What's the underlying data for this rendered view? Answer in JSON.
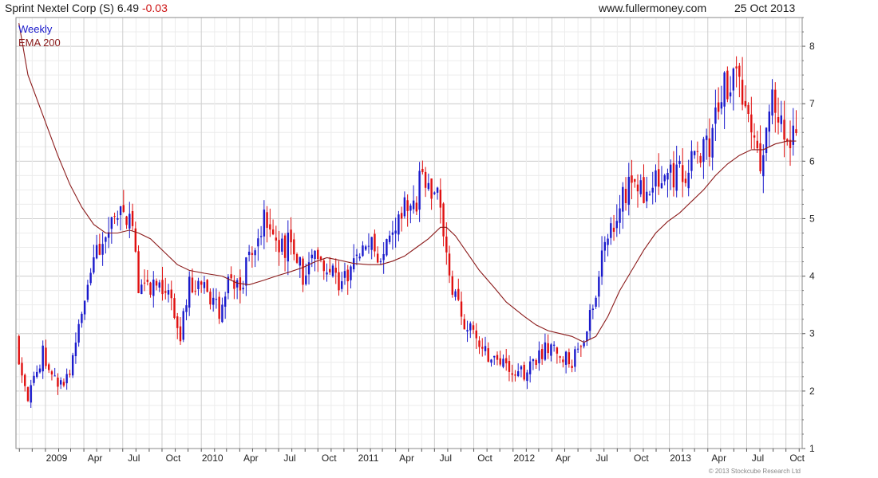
{
  "header": {
    "security": "Sprint Nextel Corp (S)",
    "last_price": "6.49",
    "change": "-0.03",
    "website": "www.fullermoney.com",
    "date": "25 Oct 2013"
  },
  "colors": {
    "up": "#1a1acc",
    "down": "#e01010",
    "ema": "#8b1a1a",
    "grid": "#d8d8d8",
    "legend_weekly": "#1a1acc",
    "legend_ema": "#8b1a1a",
    "change": "#cc1111"
  },
  "chart_data": {
    "type": "candlestick",
    "interval": "Weekly",
    "legend": [
      "Weekly",
      "EMA 200"
    ],
    "legend_position": "top-left",
    "y_axis_position": "right",
    "grid": true,
    "ylim": [
      1,
      8.5
    ],
    "y_ticks": [
      1,
      2,
      3,
      4,
      5,
      6,
      7,
      8
    ],
    "x_ticks": [
      "2009",
      "Apr",
      "Jul",
      "Oct",
      "2010",
      "Apr",
      "Jul",
      "Oct",
      "2011",
      "Apr",
      "Jul",
      "Oct",
      "2012",
      "Apr",
      "Jul",
      "Oct",
      "2013",
      "Apr",
      "Jul",
      "Oct"
    ],
    "price_anchors": [
      [
        "2008-10-31",
        2.6
      ],
      [
        "2008-11-21",
        1.8
      ],
      [
        "2008-12-26",
        2.7
      ],
      [
        "2009-01-30",
        2.1
      ],
      [
        "2009-02-27",
        2.3
      ],
      [
        "2009-03-27",
        3.3
      ],
      [
        "2009-04-24",
        4.2
      ],
      [
        "2009-05-22",
        4.7
      ],
      [
        "2009-06-19",
        5.2
      ],
      [
        "2009-07-17",
        5.0
      ],
      [
        "2009-08-07",
        3.9
      ],
      [
        "2009-09-04",
        3.8
      ],
      [
        "2009-10-02",
        3.8
      ],
      [
        "2009-10-23",
        3.6
      ],
      [
        "2009-11-13",
        2.9
      ],
      [
        "2009-12-04",
        3.9
      ],
      [
        "2010-01-08",
        3.8
      ],
      [
        "2010-02-12",
        3.4
      ],
      [
        "2010-03-05",
        3.8
      ],
      [
        "2010-04-09",
        4.0
      ],
      [
        "2010-05-14",
        4.6
      ],
      [
        "2010-06-04",
        5.1
      ],
      [
        "2010-06-25",
        4.4
      ],
      [
        "2010-07-30",
        4.6
      ],
      [
        "2010-08-27",
        4.0
      ],
      [
        "2010-09-24",
        4.6
      ],
      [
        "2010-10-22",
        4.2
      ],
      [
        "2010-11-19",
        3.9
      ],
      [
        "2010-12-24",
        4.2
      ],
      [
        "2011-01-28",
        4.5
      ],
      [
        "2011-02-25",
        4.3
      ],
      [
        "2011-03-25",
        4.6
      ],
      [
        "2011-04-22",
        5.2
      ],
      [
        "2011-05-20",
        5.3
      ],
      [
        "2011-06-03",
        5.9
      ],
      [
        "2011-06-24",
        5.2
      ],
      [
        "2011-07-15",
        5.4
      ],
      [
        "2011-08-05",
        4.0
      ],
      [
        "2011-09-02",
        3.3
      ],
      [
        "2011-09-30",
        3.1
      ],
      [
        "2011-10-21",
        2.8
      ],
      [
        "2011-11-18",
        2.5
      ],
      [
        "2011-12-16",
        2.4
      ],
      [
        "2012-01-27",
        2.3
      ],
      [
        "2012-02-24",
        2.5
      ],
      [
        "2012-03-23",
        2.8
      ],
      [
        "2012-04-20",
        2.7
      ],
      [
        "2012-05-18",
        2.5
      ],
      [
        "2012-06-15",
        3.0
      ],
      [
        "2012-07-13",
        3.8
      ],
      [
        "2012-08-10",
        4.7
      ],
      [
        "2012-09-07",
        5.3
      ],
      [
        "2012-10-05",
        5.7
      ],
      [
        "2012-11-02",
        5.5
      ],
      [
        "2012-11-30",
        5.6
      ],
      [
        "2012-12-28",
        5.7
      ],
      [
        "2013-01-25",
        5.8
      ],
      [
        "2013-02-22",
        5.9
      ],
      [
        "2013-03-22",
        6.2
      ],
      [
        "2013-04-12",
        6.3
      ],
      [
        "2013-04-26",
        7.2
      ],
      [
        "2013-05-24",
        7.3
      ],
      [
        "2013-06-14",
        7.3
      ],
      [
        "2013-07-05",
        6.9
      ],
      [
        "2013-07-19",
        6.2
      ],
      [
        "2013-08-02",
        5.8
      ],
      [
        "2013-08-23",
        7.1
      ],
      [
        "2013-09-13",
        6.7
      ],
      [
        "2013-10-04",
        6.2
      ],
      [
        "2013-10-25",
        6.49
      ]
    ],
    "ema_200": [
      [
        "2008-10-31",
        8.4
      ],
      [
        "2008-11-21",
        7.5
      ],
      [
        "2008-12-26",
        6.8
      ],
      [
        "2009-01-30",
        6.1
      ],
      [
        "2009-02-27",
        5.6
      ],
      [
        "2009-03-27",
        5.2
      ],
      [
        "2009-04-24",
        4.9
      ],
      [
        "2009-05-22",
        4.75
      ],
      [
        "2009-06-19",
        4.75
      ],
      [
        "2009-07-17",
        4.8
      ],
      [
        "2009-08-07",
        4.75
      ],
      [
        "2009-09-04",
        4.65
      ],
      [
        "2009-10-02",
        4.45
      ],
      [
        "2009-11-06",
        4.2
      ],
      [
        "2009-12-04",
        4.1
      ],
      [
        "2010-01-08",
        4.05
      ],
      [
        "2010-02-19",
        4.0
      ],
      [
        "2010-03-26",
        3.88
      ],
      [
        "2010-04-23",
        3.85
      ],
      [
        "2010-05-28",
        3.93
      ],
      [
        "2010-06-25",
        4.0
      ],
      [
        "2010-07-30",
        4.08
      ],
      [
        "2010-08-27",
        4.15
      ],
      [
        "2010-09-24",
        4.25
      ],
      [
        "2010-10-22",
        4.32
      ],
      [
        "2010-11-19",
        4.28
      ],
      [
        "2010-12-24",
        4.22
      ],
      [
        "2011-01-28",
        4.2
      ],
      [
        "2011-02-25",
        4.2
      ],
      [
        "2011-03-25",
        4.26
      ],
      [
        "2011-04-22",
        4.35
      ],
      [
        "2011-05-20",
        4.5
      ],
      [
        "2011-06-17",
        4.65
      ],
      [
        "2011-07-15",
        4.85
      ],
      [
        "2011-07-29",
        4.85
      ],
      [
        "2011-08-19",
        4.7
      ],
      [
        "2011-09-16",
        4.4
      ],
      [
        "2011-10-14",
        4.1
      ],
      [
        "2011-11-18",
        3.8
      ],
      [
        "2011-12-16",
        3.55
      ],
      [
        "2012-01-27",
        3.3
      ],
      [
        "2012-02-24",
        3.15
      ],
      [
        "2012-03-23",
        3.05
      ],
      [
        "2012-04-20",
        3.0
      ],
      [
        "2012-05-18",
        2.95
      ],
      [
        "2012-06-15",
        2.85
      ],
      [
        "2012-07-13",
        2.95
      ],
      [
        "2012-08-10",
        3.3
      ],
      [
        "2012-09-07",
        3.75
      ],
      [
        "2012-10-05",
        4.1
      ],
      [
        "2012-11-02",
        4.45
      ],
      [
        "2012-11-30",
        4.75
      ],
      [
        "2012-12-28",
        4.95
      ],
      [
        "2013-01-25",
        5.1
      ],
      [
        "2013-02-22",
        5.3
      ],
      [
        "2013-03-22",
        5.5
      ],
      [
        "2013-04-19",
        5.75
      ],
      [
        "2013-05-17",
        5.95
      ],
      [
        "2013-06-14",
        6.1
      ],
      [
        "2013-07-12",
        6.2
      ],
      [
        "2013-08-09",
        6.2
      ],
      [
        "2013-09-06",
        6.3
      ],
      [
        "2013-10-04",
        6.35
      ],
      [
        "2013-10-25",
        6.35
      ]
    ]
  },
  "footer": {
    "copyright": "© 2013 Stockcube Research Ltd"
  }
}
